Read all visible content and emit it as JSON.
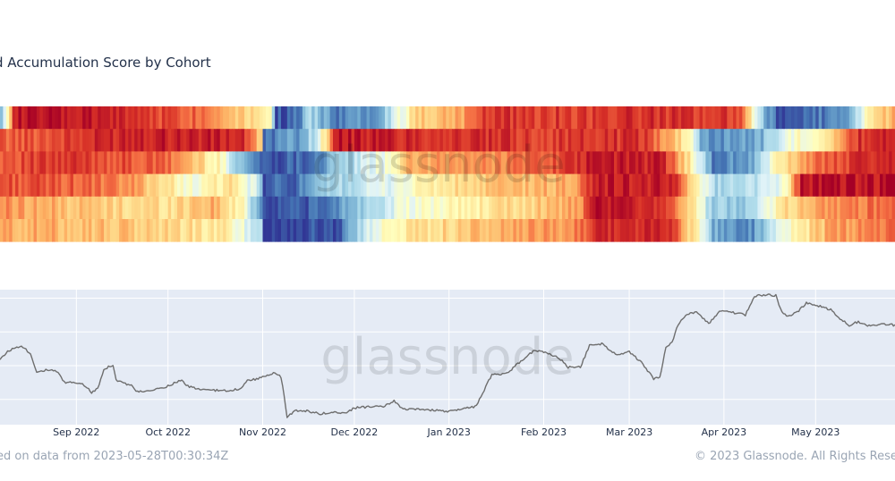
{
  "title": "d Accumulation Score by Cohort",
  "footer": {
    "source_note": "ed on data from 2023-05-28T00:30:34Z",
    "copyright": "© 2023 Glassnode. All Rights Rese"
  },
  "watermark": "glassnode",
  "colors": {
    "heat_low": "#313695",
    "heat_mid": "#ffffbf",
    "heat_high": "#a50026",
    "price_panel_bg": "#e5ebf5",
    "price_line": "#6e6e6e"
  },
  "chart_data": [
    {
      "type": "heatmap",
      "title": "d Accumulation Score by Cohort",
      "x_range": [
        "2022-08-07",
        "2023-05-27"
      ],
      "rows": 6,
      "value_range": [
        0,
        1
      ],
      "colorscale": "RdYlBu reversed (0 = distribution, blue; 1 = accumulation, red)",
      "segments": [
        [
          [
            "2022-08-07",
            0.3
          ],
          [
            "2022-08-10",
            0.7
          ],
          [
            "2022-08-11",
            0.96
          ],
          [
            "2022-09-15",
            0.92
          ],
          [
            "2022-10-10",
            0.82
          ],
          [
            "2022-11-03",
            0.55
          ],
          [
            "2022-11-05",
            0.05
          ],
          [
            "2022-11-12",
            0.08
          ],
          [
            "2022-11-16",
            0.3
          ],
          [
            "2022-11-25",
            0.12
          ],
          [
            "2022-12-08",
            0.2
          ],
          [
            "2022-12-14",
            0.4
          ],
          [
            "2022-12-22",
            0.65
          ],
          [
            "2023-01-05",
            0.72
          ],
          [
            "2023-01-12",
            0.9
          ],
          [
            "2023-02-07",
            0.88
          ],
          [
            "2023-03-10",
            0.9
          ],
          [
            "2023-04-06",
            0.88
          ],
          [
            "2023-04-12",
            0.3
          ],
          [
            "2023-04-18",
            0.05
          ],
          [
            "2023-05-10",
            0.15
          ],
          [
            "2023-05-16",
            0.45
          ],
          [
            "2023-05-27",
            0.75
          ]
        ],
        [
          [
            "2022-08-07",
            0.82
          ],
          [
            "2022-09-01",
            0.88
          ],
          [
            "2022-09-20",
            0.95
          ],
          [
            "2022-10-25",
            0.92
          ],
          [
            "2022-10-31",
            0.6
          ],
          [
            "2022-11-01",
            0.1
          ],
          [
            "2022-11-12",
            0.18
          ],
          [
            "2022-11-18",
            0.35
          ],
          [
            "2022-11-25",
            0.95
          ],
          [
            "2023-01-05",
            0.9
          ],
          [
            "2023-02-05",
            0.88
          ],
          [
            "2023-03-05",
            0.9
          ],
          [
            "2023-03-20",
            0.55
          ],
          [
            "2023-03-25",
            0.15
          ],
          [
            "2023-04-12",
            0.2
          ],
          [
            "2023-04-22",
            0.45
          ],
          [
            "2023-05-05",
            0.6
          ],
          [
            "2023-05-15",
            0.9
          ],
          [
            "2023-05-27",
            0.95
          ]
        ],
        [
          [
            "2022-08-07",
            0.85
          ],
          [
            "2022-09-01",
            0.88
          ],
          [
            "2022-10-01",
            0.8
          ],
          [
            "2022-10-18",
            0.5
          ],
          [
            "2022-10-23",
            0.3
          ],
          [
            "2022-10-28",
            0.15
          ],
          [
            "2022-11-01",
            0.05
          ],
          [
            "2022-11-16",
            0.1
          ],
          [
            "2022-11-25",
            0.25
          ],
          [
            "2022-12-10",
            0.45
          ],
          [
            "2022-12-20",
            0.7
          ],
          [
            "2023-01-15",
            0.75
          ],
          [
            "2023-02-10",
            0.88
          ],
          [
            "2023-02-18",
            0.95
          ],
          [
            "2023-03-12",
            0.92
          ],
          [
            "2023-03-22",
            0.5
          ],
          [
            "2023-03-28",
            0.1
          ],
          [
            "2023-04-10",
            0.2
          ],
          [
            "2023-04-20",
            0.6
          ],
          [
            "2023-05-05",
            0.85
          ],
          [
            "2023-05-27",
            0.95
          ]
        ],
        [
          [
            "2022-08-07",
            0.85
          ],
          [
            "2022-09-01",
            0.82
          ],
          [
            "2022-09-20",
            0.72
          ],
          [
            "2022-10-10",
            0.45
          ],
          [
            "2022-10-20",
            0.6
          ],
          [
            "2022-10-30",
            0.35
          ],
          [
            "2022-11-01",
            0.05
          ],
          [
            "2022-11-12",
            0.1
          ],
          [
            "2022-11-25",
            0.3
          ],
          [
            "2022-12-10",
            0.4
          ],
          [
            "2022-12-25",
            0.55
          ],
          [
            "2023-01-15",
            0.65
          ],
          [
            "2023-02-10",
            0.7
          ],
          [
            "2023-02-18",
            0.95
          ],
          [
            "2023-03-15",
            0.92
          ],
          [
            "2023-03-22",
            0.6
          ],
          [
            "2023-03-28",
            0.3
          ],
          [
            "2023-04-12",
            0.35
          ],
          [
            "2023-04-20",
            0.45
          ],
          [
            "2023-04-26",
            0.96
          ],
          [
            "2023-05-27",
            0.95
          ]
        ],
        [
          [
            "2022-08-07",
            0.75
          ],
          [
            "2022-08-25",
            0.68
          ],
          [
            "2022-09-15",
            0.62
          ],
          [
            "2022-10-01",
            0.6
          ],
          [
            "2022-10-15",
            0.7
          ],
          [
            "2022-10-25",
            0.5
          ],
          [
            "2022-10-31",
            0.15
          ],
          [
            "2022-11-01",
            0.05
          ],
          [
            "2022-11-22",
            0.08
          ],
          [
            "2022-11-30",
            0.25
          ],
          [
            "2022-12-15",
            0.42
          ],
          [
            "2023-01-01",
            0.52
          ],
          [
            "2023-01-25",
            0.62
          ],
          [
            "2023-02-12",
            0.72
          ],
          [
            "2023-02-18",
            0.95
          ],
          [
            "2023-03-12",
            0.92
          ],
          [
            "2023-03-22",
            0.55
          ],
          [
            "2023-03-28",
            0.25
          ],
          [
            "2023-04-10",
            0.3
          ],
          [
            "2023-04-20",
            0.6
          ],
          [
            "2023-05-05",
            0.75
          ],
          [
            "2023-05-27",
            0.82
          ]
        ],
        [
          [
            "2022-08-07",
            0.7
          ],
          [
            "2022-09-01",
            0.68
          ],
          [
            "2022-10-01",
            0.62
          ],
          [
            "2022-10-20",
            0.55
          ],
          [
            "2022-10-31",
            0.3
          ],
          [
            "2022-11-01",
            0.02
          ],
          [
            "2022-11-25",
            0.05
          ],
          [
            "2022-12-02",
            0.3
          ],
          [
            "2022-12-12",
            0.55
          ],
          [
            "2022-12-25",
            0.6
          ],
          [
            "2023-01-15",
            0.68
          ],
          [
            "2023-02-10",
            0.75
          ],
          [
            "2023-02-18",
            0.92
          ],
          [
            "2023-03-15",
            0.9
          ],
          [
            "2023-03-22",
            0.55
          ],
          [
            "2023-03-28",
            0.2
          ],
          [
            "2023-04-10",
            0.15
          ],
          [
            "2023-04-20",
            0.45
          ],
          [
            "2023-05-05",
            0.7
          ],
          [
            "2023-05-27",
            0.8
          ]
        ]
      ]
    },
    {
      "type": "line",
      "x_range": [
        "2022-08-07",
        "2023-05-27"
      ],
      "y_range": [
        15000,
        31000
      ],
      "x_ticks": [
        "Sep 2022",
        "Oct 2022",
        "Nov 2022",
        "Dec 2022",
        "Jan 2023",
        "Feb 2023",
        "Mar 2023",
        "Apr 2023",
        "May 2023"
      ],
      "x_tick_dates": [
        "2022-09-01",
        "2022-10-01",
        "2022-11-01",
        "2022-12-01",
        "2023-01-01",
        "2023-02-01",
        "2023-03-01",
        "2023-04-01",
        "2023-05-01"
      ],
      "grid": true,
      "series": [
        {
          "points": [
            [
              "2022-08-07",
              22800
            ],
            [
              "2022-08-10",
              23800
            ],
            [
              "2022-08-14",
              24400
            ],
            [
              "2022-08-17",
              23400
            ],
            [
              "2022-08-19",
              21300
            ],
            [
              "2022-08-23",
              21500
            ],
            [
              "2022-08-26",
              21200
            ],
            [
              "2022-08-28",
              20000
            ],
            [
              "2022-08-31",
              20000
            ],
            [
              "2022-09-03",
              19900
            ],
            [
              "2022-09-06",
              18800
            ],
            [
              "2022-09-08",
              19300
            ],
            [
              "2022-09-10",
              21600
            ],
            [
              "2022-09-13",
              22100
            ],
            [
              "2022-09-14",
              20300
            ],
            [
              "2022-09-19",
              19600
            ],
            [
              "2022-09-21",
              18900
            ],
            [
              "2022-09-24",
              18900
            ],
            [
              "2022-09-27",
              19200
            ],
            [
              "2022-09-30",
              19400
            ],
            [
              "2022-10-05",
              20300
            ],
            [
              "2022-10-08",
              19500
            ],
            [
              "2022-10-12",
              19100
            ],
            [
              "2022-10-15",
              19100
            ],
            [
              "2022-10-20",
              19000
            ],
            [
              "2022-10-25",
              19300
            ],
            [
              "2022-10-27",
              20200
            ],
            [
              "2022-10-31",
              20500
            ],
            [
              "2022-11-05",
              21200
            ],
            [
              "2022-11-07",
              20600
            ],
            [
              "2022-11-08",
              18500
            ],
            [
              "2022-11-09",
              15900
            ],
            [
              "2022-11-12",
              16700
            ],
            [
              "2022-11-16",
              16600
            ],
            [
              "2022-11-20",
              16300
            ],
            [
              "2022-11-25",
              16500
            ],
            [
              "2022-11-28",
              16300
            ],
            [
              "2022-12-01",
              17000
            ],
            [
              "2022-12-05",
              17100
            ],
            [
              "2022-12-10",
              17100
            ],
            [
              "2022-12-14",
              17800
            ],
            [
              "2022-12-17",
              16800
            ],
            [
              "2022-12-22",
              16800
            ],
            [
              "2022-12-27",
              16700
            ],
            [
              "2023-01-01",
              16600
            ],
            [
              "2023-01-06",
              16900
            ],
            [
              "2023-01-10",
              17200
            ],
            [
              "2023-01-13",
              19500
            ],
            [
              "2023-01-15",
              20900
            ],
            [
              "2023-01-20",
              21100
            ],
            [
              "2023-01-25",
              22700
            ],
            [
              "2023-01-29",
              23800
            ],
            [
              "2023-02-03",
              23400
            ],
            [
              "2023-02-06",
              22900
            ],
            [
              "2023-02-09",
              21800
            ],
            [
              "2023-02-13",
              21800
            ],
            [
              "2023-02-16",
              24400
            ],
            [
              "2023-02-20",
              24600
            ],
            [
              "2023-02-25",
              23200
            ],
            [
              "2023-03-01",
              23600
            ],
            [
              "2023-03-05",
              22400
            ],
            [
              "2023-03-09",
              20400
            ],
            [
              "2023-03-11",
              20600
            ],
            [
              "2023-03-13",
              24100
            ],
            [
              "2023-03-15",
              24800
            ],
            [
              "2023-03-17",
              26900
            ],
            [
              "2023-03-20",
              28100
            ],
            [
              "2023-03-23",
              28300
            ],
            [
              "2023-03-27",
              27000
            ],
            [
              "2023-03-31",
              28500
            ],
            [
              "2023-04-05",
              28200
            ],
            [
              "2023-04-08",
              28000
            ],
            [
              "2023-04-11",
              30200
            ],
            [
              "2023-04-14",
              30400
            ],
            [
              "2023-04-18",
              30300
            ],
            [
              "2023-04-20",
              28300
            ],
            [
              "2023-04-22",
              27800
            ],
            [
              "2023-04-25",
              28300
            ],
            [
              "2023-04-28",
              29400
            ],
            [
              "2023-05-03",
              29000
            ],
            [
              "2023-05-06",
              28600
            ],
            [
              "2023-05-09",
              27600
            ],
            [
              "2023-05-12",
              26800
            ],
            [
              "2023-05-15",
              27200
            ],
            [
              "2023-05-18",
              26800
            ],
            [
              "2023-05-22",
              26900
            ],
            [
              "2023-05-27",
              26800
            ]
          ]
        }
      ]
    }
  ]
}
